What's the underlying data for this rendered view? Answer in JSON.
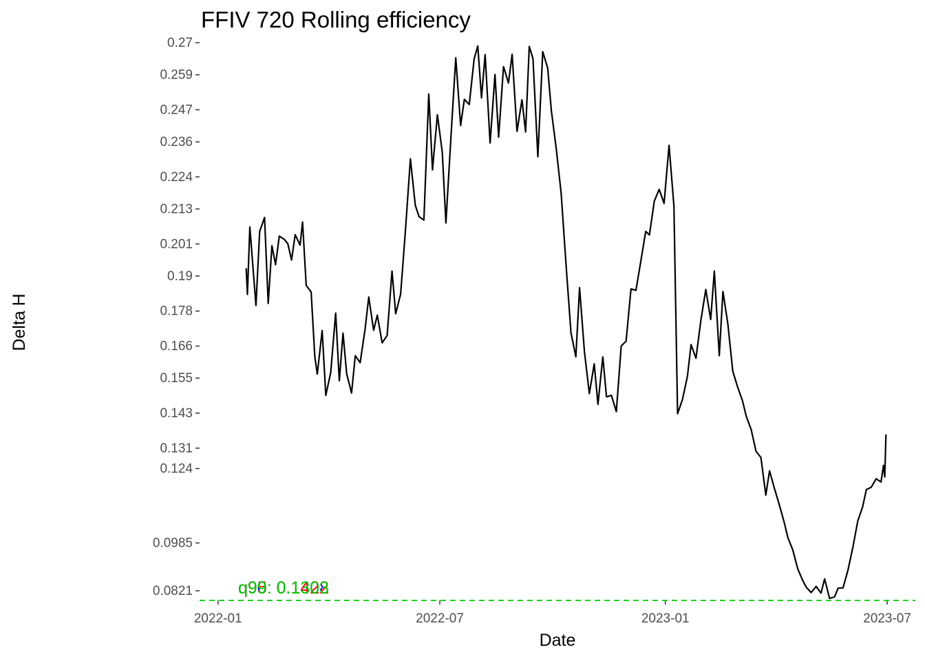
{
  "chart_data": {
    "type": "line",
    "title": "FFIV 720 Rolling efficiency",
    "xlabel": "Date",
    "ylabel": "Delta H",
    "x_ticks": [
      "2022-01",
      "2022-07",
      "2023-01",
      "2023-07"
    ],
    "xlim": [
      "2021-12-17",
      "2023-07-24"
    ],
    "ylim": [
      0.0788,
      0.27
    ],
    "y_ticks": [
      0.0821,
      0.0985,
      0.124,
      0.131,
      0.143,
      0.155,
      0.166,
      0.178,
      0.19,
      0.201,
      0.213,
      0.224,
      0.236,
      0.247,
      0.259,
      0.27
    ],
    "grid": false,
    "series": [
      {
        "color": "#000000",
        "points": [
          [
            "2022-01-24",
            0.1927
          ],
          [
            "2022-01-25",
            0.1837
          ],
          [
            "2022-01-27",
            0.2068
          ],
          [
            "2022-02-01",
            0.1799
          ],
          [
            "2022-02-04",
            0.2053
          ],
          [
            "2022-02-08",
            0.2101
          ],
          [
            "2022-02-11",
            0.1806
          ],
          [
            "2022-02-14",
            0.2004
          ],
          [
            "2022-02-17",
            0.1939
          ],
          [
            "2022-02-20",
            0.2037
          ],
          [
            "2022-02-24",
            0.2026
          ],
          [
            "2022-02-27",
            0.2011
          ],
          [
            "2022-03-02",
            0.1955
          ],
          [
            "2022-03-05",
            0.2042
          ],
          [
            "2022-03-09",
            0.2006
          ],
          [
            "2022-03-11",
            0.2085
          ],
          [
            "2022-03-14",
            0.1868
          ],
          [
            "2022-03-18",
            0.1845
          ],
          [
            "2022-03-21",
            0.1624
          ],
          [
            "2022-03-23",
            0.1564
          ],
          [
            "2022-03-27",
            0.1713
          ],
          [
            "2022-03-30",
            0.1491
          ],
          [
            "2022-04-03",
            0.1569
          ],
          [
            "2022-04-07",
            0.1773
          ],
          [
            "2022-04-10",
            0.1541
          ],
          [
            "2022-04-13",
            0.1704
          ],
          [
            "2022-04-16",
            0.1565
          ],
          [
            "2022-04-20",
            0.1499
          ],
          [
            "2022-04-23",
            0.1627
          ],
          [
            "2022-04-27",
            0.1603
          ],
          [
            "2022-05-01",
            0.1717
          ],
          [
            "2022-05-04",
            0.1828
          ],
          [
            "2022-05-08",
            0.1714
          ],
          [
            "2022-05-11",
            0.1766
          ],
          [
            "2022-05-15",
            0.1671
          ],
          [
            "2022-05-19",
            0.1696
          ],
          [
            "2022-05-23",
            0.1917
          ],
          [
            "2022-05-26",
            0.1771
          ],
          [
            "2022-05-30",
            0.1838
          ],
          [
            "2022-06-03",
            0.206
          ],
          [
            "2022-06-07",
            0.2302
          ],
          [
            "2022-06-11",
            0.2143
          ],
          [
            "2022-06-14",
            0.2104
          ],
          [
            "2022-06-18",
            0.2092
          ],
          [
            "2022-06-22",
            0.2524
          ],
          [
            "2022-06-25",
            0.2264
          ],
          [
            "2022-06-29",
            0.2453
          ],
          [
            "2022-07-03",
            0.2325
          ],
          [
            "2022-07-06",
            0.2082
          ],
          [
            "2022-07-10",
            0.2372
          ],
          [
            "2022-07-14",
            0.2648
          ],
          [
            "2022-07-18",
            0.2416
          ],
          [
            "2022-07-21",
            0.2506
          ],
          [
            "2022-07-25",
            0.2488
          ],
          [
            "2022-07-29",
            0.2644
          ],
          [
            "2022-08-01",
            0.2689
          ],
          [
            "2022-08-04",
            0.2511
          ],
          [
            "2022-08-07",
            0.2659
          ],
          [
            "2022-08-11",
            0.2356
          ],
          [
            "2022-08-15",
            0.2591
          ],
          [
            "2022-08-18",
            0.2376
          ],
          [
            "2022-08-22",
            0.2618
          ],
          [
            "2022-08-26",
            0.2562
          ],
          [
            "2022-08-29",
            0.266
          ],
          [
            "2022-09-02",
            0.2396
          ],
          [
            "2022-09-06",
            0.2504
          ],
          [
            "2022-09-09",
            0.2394
          ],
          [
            "2022-09-12",
            0.2687
          ],
          [
            "2022-09-15",
            0.2645
          ],
          [
            "2022-09-19",
            0.2309
          ],
          [
            "2022-09-23",
            0.2669
          ],
          [
            "2022-09-27",
            0.2613
          ],
          [
            "2022-09-30",
            0.2467
          ],
          [
            "2022-10-04",
            0.2337
          ],
          [
            "2022-10-08",
            0.2185
          ],
          [
            "2022-10-12",
            0.1937
          ],
          [
            "2022-10-16",
            0.1706
          ],
          [
            "2022-10-20",
            0.1623
          ],
          [
            "2022-10-23",
            0.186
          ],
          [
            "2022-10-27",
            0.164
          ],
          [
            "2022-10-31",
            0.1497
          ],
          [
            "2022-11-04",
            0.1599
          ],
          [
            "2022-11-07",
            0.146
          ],
          [
            "2022-11-11",
            0.1623
          ],
          [
            "2022-11-14",
            0.1486
          ],
          [
            "2022-11-18",
            0.1491
          ],
          [
            "2022-11-22",
            0.1435
          ],
          [
            "2022-11-26",
            0.166
          ],
          [
            "2022-11-30",
            0.1677
          ],
          [
            "2022-12-04",
            0.1856
          ],
          [
            "2022-12-08",
            0.1851
          ],
          [
            "2022-12-12",
            0.1951
          ],
          [
            "2022-12-16",
            0.2053
          ],
          [
            "2022-12-19",
            0.2041
          ],
          [
            "2022-12-23",
            0.2157
          ],
          [
            "2022-12-27",
            0.2197
          ],
          [
            "2022-12-31",
            0.2149
          ],
          [
            "2023-01-04",
            0.2348
          ],
          [
            "2023-01-08",
            0.214
          ],
          [
            "2023-01-11",
            0.1428
          ],
          [
            "2023-01-15",
            0.1477
          ],
          [
            "2023-01-19",
            0.1556
          ],
          [
            "2023-01-22",
            0.1665
          ],
          [
            "2023-01-26",
            0.1618
          ],
          [
            "2023-01-30",
            0.1749
          ],
          [
            "2023-02-03",
            0.1854
          ],
          [
            "2023-02-07",
            0.1751
          ],
          [
            "2023-02-10",
            0.1917
          ],
          [
            "2023-02-14",
            0.1627
          ],
          [
            "2023-02-17",
            0.1847
          ],
          [
            "2023-02-21",
            0.1737
          ],
          [
            "2023-02-25",
            0.1574
          ],
          [
            "2023-03-01",
            0.1519
          ],
          [
            "2023-03-05",
            0.1472
          ],
          [
            "2023-03-08",
            0.142
          ],
          [
            "2023-03-12",
            0.1374
          ],
          [
            "2023-03-16",
            0.1299
          ],
          [
            "2023-03-20",
            0.1278
          ],
          [
            "2023-03-24",
            0.1149
          ],
          [
            "2023-03-27",
            0.1232
          ],
          [
            "2023-03-31",
            0.1172
          ],
          [
            "2023-04-04",
            0.1116
          ],
          [
            "2023-04-08",
            0.1055
          ],
          [
            "2023-04-11",
            0.1003
          ],
          [
            "2023-04-15",
            0.0961
          ],
          [
            "2023-04-19",
            0.0897
          ],
          [
            "2023-04-23",
            0.0857
          ],
          [
            "2023-04-26",
            0.0833
          ],
          [
            "2023-04-30",
            0.0815
          ],
          [
            "2023-05-04",
            0.0836
          ],
          [
            "2023-05-08",
            0.0813
          ],
          [
            "2023-05-11",
            0.0862
          ],
          [
            "2023-05-15",
            0.0795
          ],
          [
            "2023-05-19",
            0.08
          ],
          [
            "2023-05-22",
            0.083
          ],
          [
            "2023-05-26",
            0.0831
          ],
          [
            "2023-05-30",
            0.0892
          ],
          [
            "2023-06-03",
            0.097
          ],
          [
            "2023-06-07",
            0.106
          ],
          [
            "2023-06-11",
            0.1109
          ],
          [
            "2023-06-14",
            0.1168
          ],
          [
            "2023-06-18",
            0.1176
          ],
          [
            "2023-06-22",
            0.1205
          ],
          [
            "2023-06-26",
            0.1194
          ],
          [
            "2023-06-28",
            0.1251
          ],
          [
            "2023-06-29",
            0.1211
          ],
          [
            "2023-06-30",
            0.1357
          ]
        ]
      }
    ],
    "reference_line": {
      "y": 0.0788,
      "color": "#00cc00",
      "style": "dashed"
    },
    "annotations": [
      {
        "text": "q90: 0.1408",
        "color": "#0000cc"
      },
      {
        "text": "q95: 0.1422",
        "color": "#ff0000"
      },
      {
        "text": "q99: 0.1303",
        "color": "#00cc00"
      }
    ]
  }
}
